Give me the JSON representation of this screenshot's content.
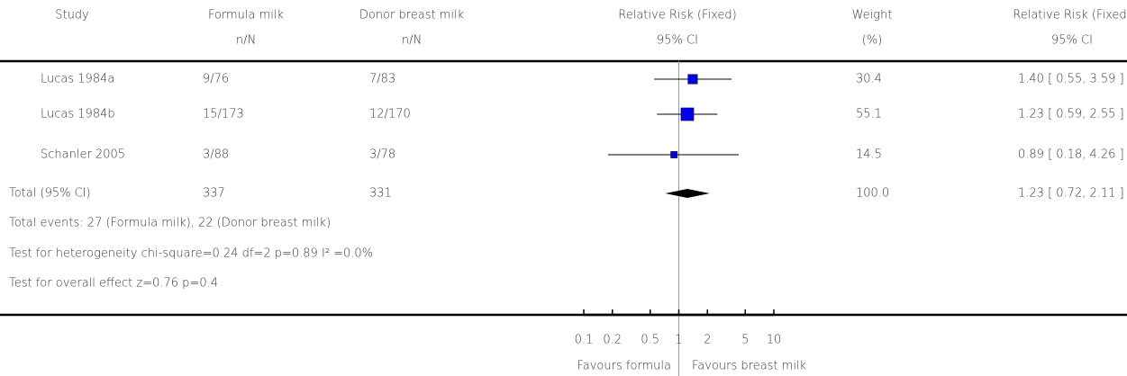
{
  "chart_data": {
    "type": "forest",
    "headers": [
      "Study",
      "Formula milk",
      "Donor breast milk",
      "Relative Risk (Fixed)",
      "Weight",
      "Relative Risk (Fixed)"
    ],
    "subheaders": [
      "n/N",
      "n/N",
      "95% CI",
      "(%)",
      "95% CI"
    ],
    "categories": [
      "Lucas 1984a",
      "Lucas 1984b",
      "Schanler 2005"
    ],
    "formula": [
      "9/76",
      "15/173",
      "3/88"
    ],
    "donor": [
      "7/83",
      "12/170",
      "3/78"
    ],
    "values": [
      1.4,
      1.23,
      0.89
    ],
    "lower": [
      0.55,
      0.59,
      0.18
    ],
    "upper": [
      3.59,
      2.55,
      4.26
    ],
    "weights": [
      30.4,
      55.1,
      14.5
    ],
    "value_labels": [
      "1.40 [ 0.55, 3.59 ]",
      "1.23 [ 0.59, 2.55 ]",
      "0.89 [ 0.18, 4.26 ]"
    ],
    "total": {
      "label": "Total (95% CI)",
      "formula": "337",
      "donor": "331",
      "value": 1.23,
      "lower": 0.72,
      "upper": 2.11,
      "weight": "100.0",
      "value_label": "1.23 [ 0.72, 2.11 ]"
    },
    "notes": [
      "Total events: 27 (Formula milk), 22 (Donor breast milk)",
      "Test for heterogeneity chi-square=0.24 df=2 p=0.89 I² =0.0%",
      "Test for overall effect z=0.76   p=0.4"
    ],
    "xlim": [
      0.1,
      10
    ],
    "xticks": [
      0.1,
      0.2,
      0.5,
      1,
      2,
      5,
      10
    ],
    "log_x": true,
    "color": "#0000ee",
    "xlabel_left": "Favours formula",
    "xlabel_right": "Favours breast milk"
  }
}
